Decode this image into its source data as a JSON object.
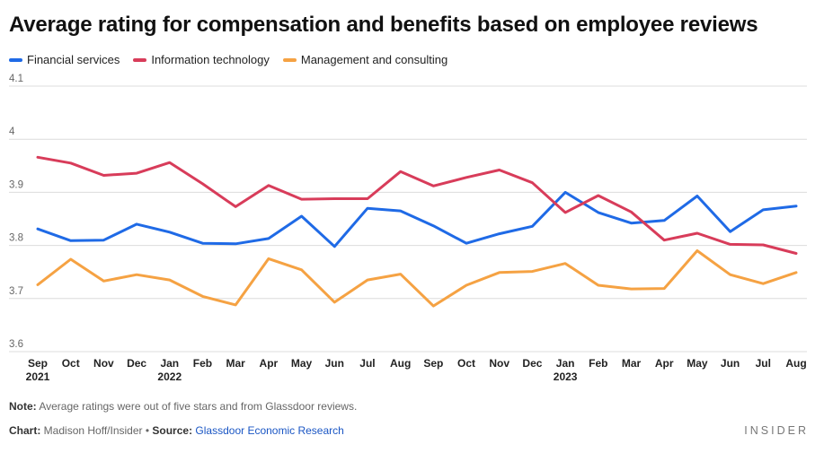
{
  "header": {
    "title": "Average rating for compensation and benefits based on employee reviews"
  },
  "legend": [
    {
      "label": "Financial services",
      "color": "#1f6ae6"
    },
    {
      "label": "Information technology",
      "color": "#d83c5a"
    },
    {
      "label": "Management and consulting",
      "color": "#f5a243"
    }
  ],
  "footer": {
    "note_label": "Note:",
    "note_text": " Average ratings were out of five stars and from Glassdoor reviews.",
    "chart_label": "Chart:",
    "chart_credit": " Madison Hoff/Insider",
    "separator": " • ",
    "source_label": "Source:",
    "source_text": "Glassdoor Economic Research",
    "logo": "INSIDER"
  },
  "chart_data": {
    "type": "line",
    "title": "Average rating for compensation and benefits based on employee reviews",
    "xlabel": "",
    "ylabel": "",
    "ylim": [
      3.6,
      4.1
    ],
    "yticks": [
      "3.6",
      "3.7",
      "3.8",
      "3.9",
      "4",
      "4.1"
    ],
    "grid": true,
    "legend_position": "top-left",
    "categories": [
      "Sep",
      "Oct",
      "Nov",
      "Dec",
      "Jan",
      "Feb",
      "Mar",
      "Apr",
      "May",
      "Jun",
      "Jul",
      "Aug",
      "Sep",
      "Oct",
      "Nov",
      "Dec",
      "Jan",
      "Feb",
      "Mar",
      "Apr",
      "May",
      "Jun",
      "Jul",
      "Aug"
    ],
    "year_labels": {
      "0": "2021",
      "4": "2022",
      "16": "2023"
    },
    "series": [
      {
        "name": "Financial services",
        "color": "#1f6ae6",
        "values": [
          3.831,
          3.809,
          3.81,
          3.84,
          3.825,
          3.804,
          3.803,
          3.813,
          3.855,
          3.798,
          3.87,
          3.865,
          3.837,
          3.804,
          3.822,
          3.836,
          3.9,
          3.862,
          3.842,
          3.847,
          3.893,
          3.826,
          3.867,
          3.874
        ]
      },
      {
        "name": "Information technology",
        "color": "#d83c5a",
        "values": [
          3.966,
          3.955,
          3.932,
          3.936,
          3.956,
          3.916,
          3.873,
          3.913,
          3.887,
          3.888,
          3.888,
          3.939,
          3.912,
          3.928,
          3.942,
          3.918,
          3.862,
          3.894,
          3.863,
          3.81,
          3.823,
          3.802,
          3.801,
          3.785
        ]
      },
      {
        "name": "Management and consulting",
        "color": "#f5a243",
        "values": [
          3.726,
          3.774,
          3.733,
          3.745,
          3.735,
          3.704,
          3.688,
          3.775,
          3.754,
          3.693,
          3.735,
          3.746,
          3.686,
          3.725,
          3.749,
          3.751,
          3.766,
          3.725,
          3.718,
          3.719,
          3.79,
          3.745,
          3.728,
          3.749
        ]
      }
    ]
  }
}
